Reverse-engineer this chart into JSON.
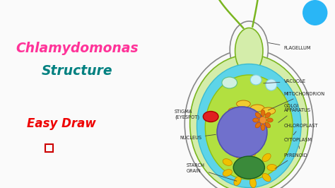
{
  "bg_color": "#fafafa",
  "title1": "Chlamydomonas",
  "title2": "Structure",
  "subtitle": "Easy Draw",
  "title1_color": "#ff3399",
  "title2_color": "#008080",
  "subtitle_color": "#ee0000",
  "cell_wall_color": "#d4edaa",
  "cell_wall_edge": "#7ab520",
  "cytoplasm_color": "#5dd4e8",
  "chloroplast_color": "#b2e040",
  "nucleus_color": "#7070cc",
  "vacuole_color": "#c8f0f8",
  "vacuole2_color": "#d0f0e0",
  "stigma_color": "#e02020",
  "pyrenoid_color": "#3a8a3a",
  "starch_grain_color": "#f0c000",
  "golgi_color": "#e8a000",
  "mito_color": "#f0cc30",
  "label_color": "#222222",
  "flagellum_color": "#7ab520",
  "neck_color": "#d4edaa",
  "top_circle_color": "#29b6f6",
  "outer_wall_edge": "#888888"
}
